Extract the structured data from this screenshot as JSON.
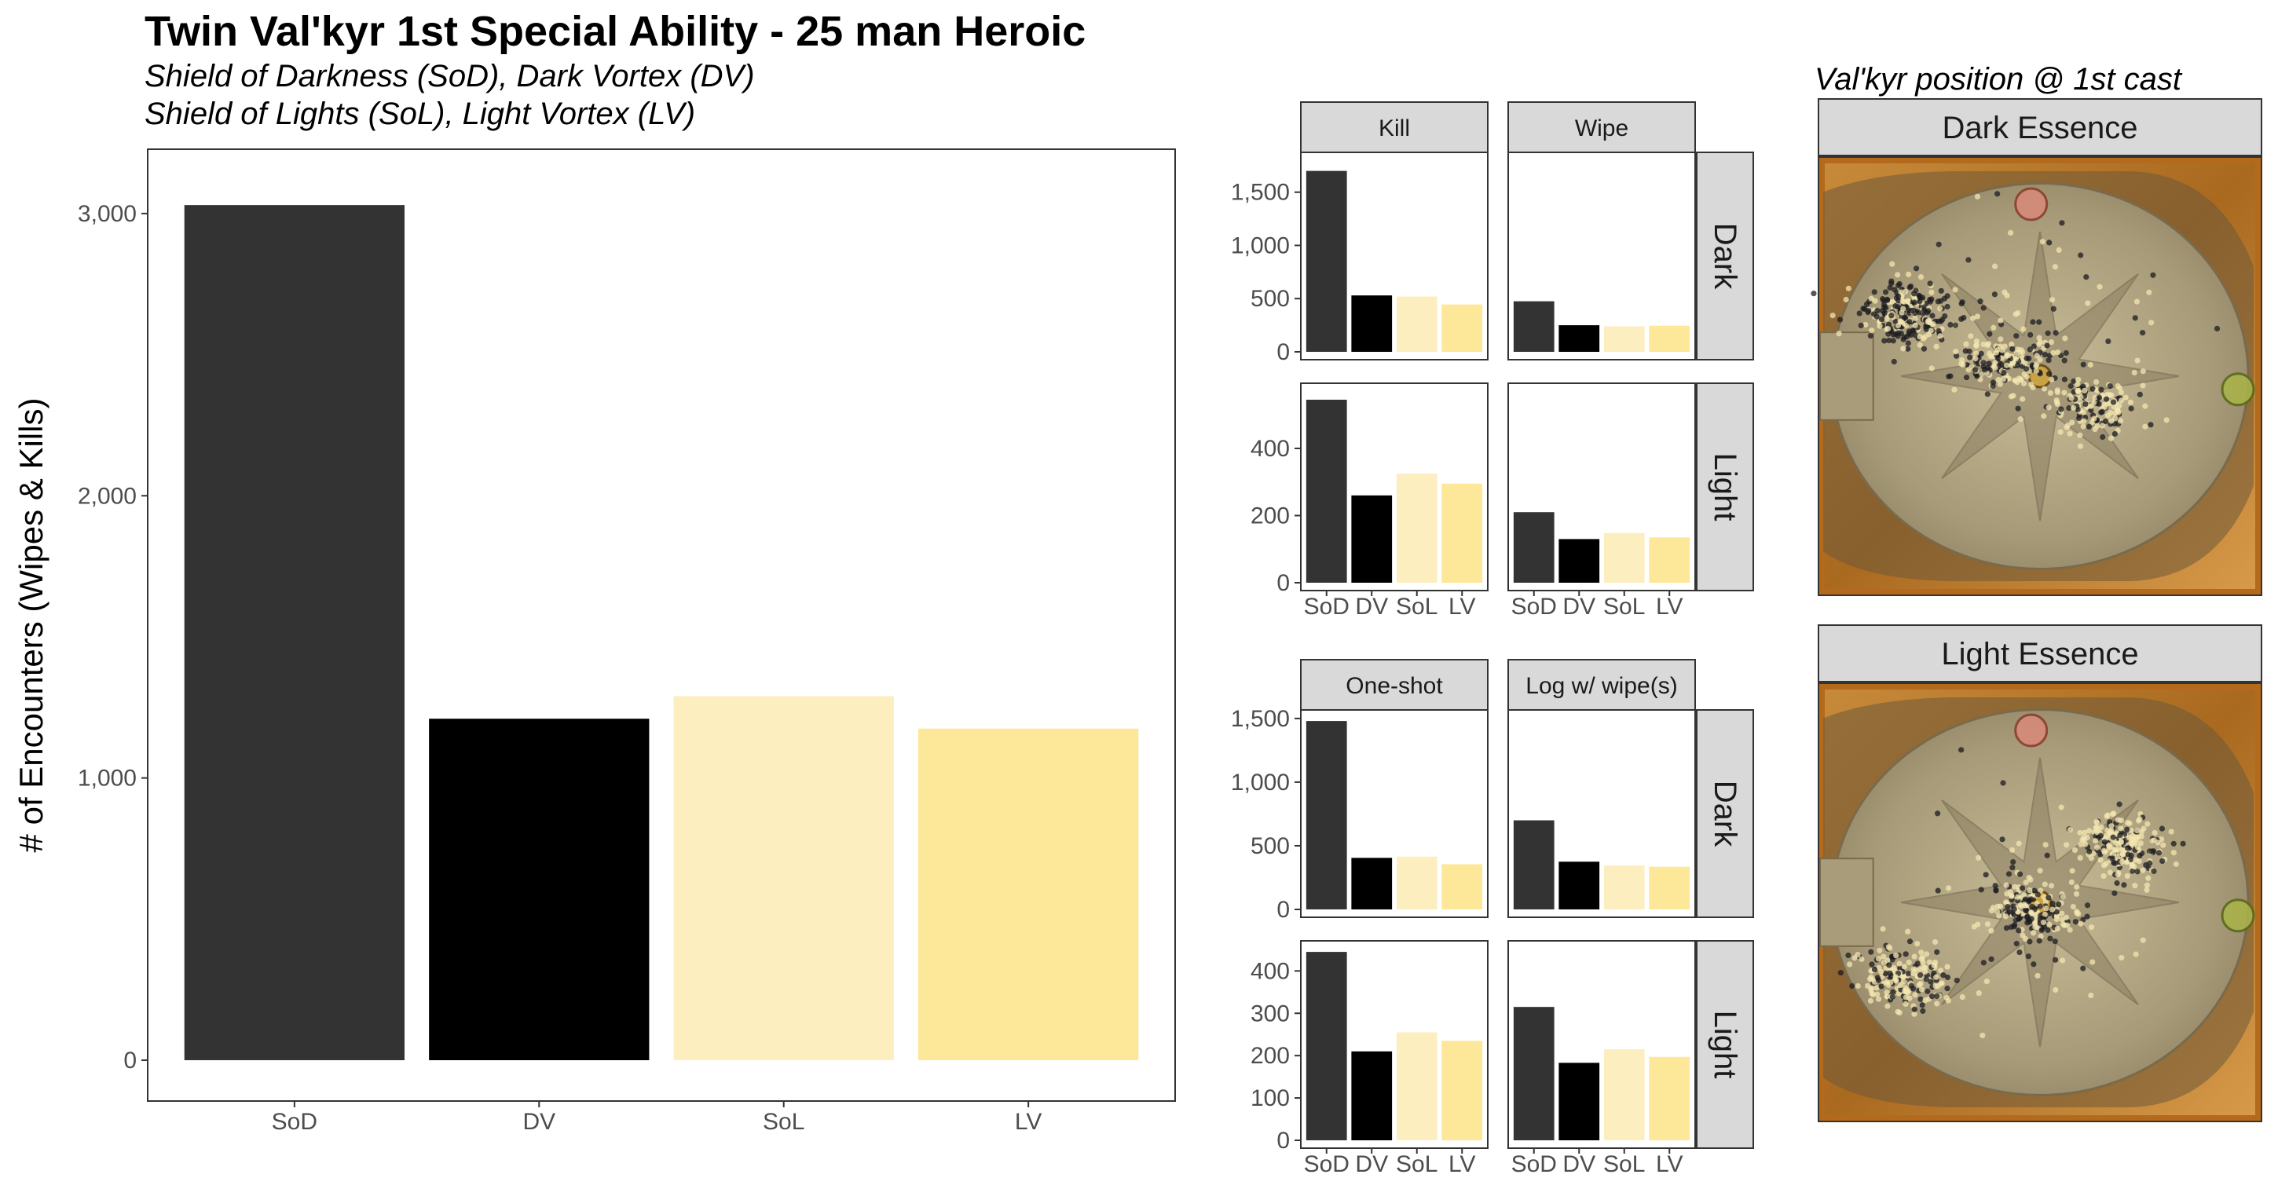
{
  "title": "Twin Val'kyr 1st Special Ability - 25 man Heroic",
  "subtitle_line1": "Shield of Darkness (SoD), Dark Vortex (DV)",
  "subtitle_line2": "Shield of Lights (SoL), Light Vortex (LV)",
  "colors": {
    "SoD": "#333333",
    "DV": "#000000",
    "SoL": "#fdeec0",
    "LV": "#fde799"
  },
  "maps": {
    "title": "Val'kyr position @ 1st cast",
    "panels": [
      {
        "label": "Dark Essence"
      },
      {
        "label": "Light Essence"
      }
    ]
  },
  "chart_data": [
    {
      "type": "bar",
      "categories": [
        "SoD",
        "DV",
        "SoL",
        "LV"
      ],
      "values": [
        3030,
        1210,
        1290,
        1175
      ],
      "ylabel": "# of Encounters (Wipes & Kills)",
      "ylim": [
        0,
        3150
      ],
      "yticks": [
        0,
        1000,
        2000,
        3000
      ],
      "ytick_labels": [
        "0",
        "1,000",
        "2,000",
        "3,000"
      ],
      "grid": false
    },
    {
      "type": "bar",
      "facet_cols": [
        "Kill",
        "Wipe"
      ],
      "facet_rows": [
        "Dark",
        "Light"
      ],
      "categories": [
        "SoD",
        "DV",
        "SoL",
        "LV"
      ],
      "panels": [
        {
          "col": "Kill",
          "row": "Dark",
          "values": [
            1700,
            530,
            520,
            445
          ]
        },
        {
          "col": "Wipe",
          "row": "Dark",
          "values": [
            475,
            250,
            240,
            245
          ]
        },
        {
          "col": "Kill",
          "row": "Light",
          "values": [
            545,
            260,
            325,
            295
          ]
        },
        {
          "col": "Wipe",
          "row": "Light",
          "values": [
            210,
            130,
            148,
            135
          ]
        }
      ],
      "row_axes": {
        "Dark": {
          "ylim": [
            0,
            1830
          ],
          "ticks": [
            0,
            500,
            1000,
            1500
          ],
          "labels": [
            "0",
            "500",
            "1,000",
            "1,500"
          ]
        },
        "Light": {
          "ylim": [
            0,
            580
          ],
          "ticks": [
            0,
            200,
            400
          ],
          "labels": [
            "0",
            "200",
            "400"
          ]
        }
      }
    },
    {
      "type": "bar",
      "facet_cols": [
        "One-shot",
        "Log w/ wipe(s)"
      ],
      "facet_rows": [
        "Dark",
        "Light"
      ],
      "categories": [
        "SoD",
        "DV",
        "SoL",
        "LV"
      ],
      "panels": [
        {
          "col": "One-shot",
          "row": "Dark",
          "values": [
            1480,
            405,
            415,
            355
          ]
        },
        {
          "col": "Log w/ wipe(s)",
          "row": "Dark",
          "values": [
            700,
            375,
            345,
            335
          ]
        },
        {
          "col": "One-shot",
          "row": "Light",
          "values": [
            445,
            210,
            255,
            235
          ]
        },
        {
          "col": "Log w/ wipe(s)",
          "row": "Light",
          "values": [
            315,
            183,
            215,
            197
          ]
        }
      ],
      "row_axes": {
        "Dark": {
          "ylim": [
            0,
            1530
          ],
          "ticks": [
            0,
            500,
            1000,
            1500
          ],
          "labels": [
            "0",
            "500",
            "1,000",
            "1,500"
          ]
        },
        "Light": {
          "ylim": [
            0,
            460
          ],
          "ticks": [
            0,
            100,
            200,
            300,
            400
          ],
          "labels": [
            "0",
            "100",
            "200",
            "300",
            "400"
          ]
        }
      }
    }
  ]
}
